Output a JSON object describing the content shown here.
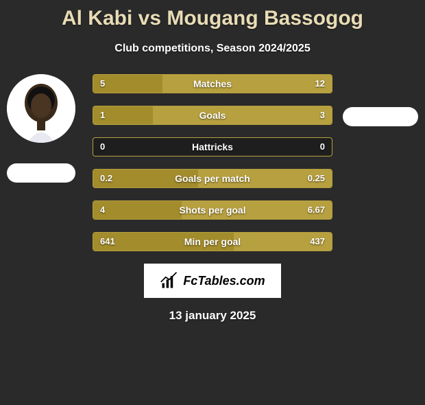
{
  "title": "Al Kabi vs Mougang Bassogog",
  "subtitle": "Club competitions, Season 2024/2025",
  "date": "13 january 2025",
  "colors": {
    "background": "#2a2a2a",
    "title": "#e9dcb5",
    "left_fill": "#a38c2c",
    "right_fill": "#b7a03f",
    "bar_border": "#b7a03f",
    "bar_empty": "#1e1e1e"
  },
  "logo_text": "FcTables.com",
  "bars": [
    {
      "label": "Matches",
      "left_val": "5",
      "right_val": "12",
      "left_pct": 29,
      "right_pct": 71,
      "left_color": "#a38c2c",
      "right_color": "#b7a03f"
    },
    {
      "label": "Goals",
      "left_val": "1",
      "right_val": "3",
      "left_pct": 25,
      "right_pct": 75,
      "left_color": "#a38c2c",
      "right_color": "#b7a03f"
    },
    {
      "label": "Hattricks",
      "left_val": "0",
      "right_val": "0",
      "left_pct": 0,
      "right_pct": 0,
      "left_color": "#a38c2c",
      "right_color": "#b7a03f"
    },
    {
      "label": "Goals per match",
      "left_val": "0.2",
      "right_val": "0.25",
      "left_pct": 44,
      "right_pct": 56,
      "left_color": "#a38c2c",
      "right_color": "#b7a03f"
    },
    {
      "label": "Shots per goal",
      "left_val": "4",
      "right_val": "6.67",
      "left_pct": 37,
      "right_pct": 63,
      "left_color": "#a38c2c",
      "right_color": "#b7a03f"
    },
    {
      "label": "Min per goal",
      "left_val": "641",
      "right_val": "437",
      "left_pct": 59,
      "right_pct": 41,
      "left_color": "#a38c2c",
      "right_color": "#b7a03f"
    }
  ]
}
